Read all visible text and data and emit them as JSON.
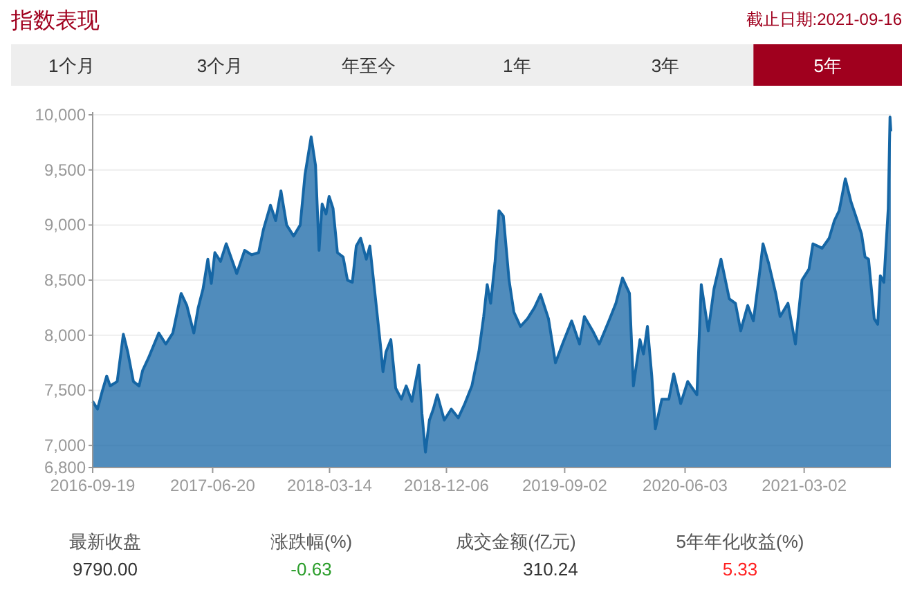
{
  "chart_data": {
    "type": "area",
    "title": "指数表现",
    "subtitle": "截止日期:2021-09-16",
    "annotations": [
      "1个月",
      "3个月",
      "年至今",
      "1年",
      "3年",
      "5年",
      "最新收盘",
      "9790.00",
      "涨跌幅(%)",
      "-0.63",
      "成交金额(亿元)",
      "310.24",
      "5年年化收益(%)",
      "5.33"
    ],
    "x": [
      "2016-09-19",
      "2016-09-30",
      "2016-10-10",
      "2016-10-21",
      "2016-10-29",
      "2016-11-14",
      "2016-11-28",
      "2016-12-08",
      "2016-12-21",
      "2017-01-03",
      "2017-01-11",
      "2017-01-24",
      "2017-02-17",
      "2017-03-05",
      "2017-03-21",
      "2017-04-09",
      "2017-04-22",
      "2017-05-08",
      "2017-05-18",
      "2017-05-29",
      "2017-06-09",
      "2017-06-17",
      "2017-06-25",
      "2017-07-08",
      "2017-07-21",
      "2017-08-14",
      "2017-09-01",
      "2017-09-17",
      "2017-10-03",
      "2017-10-14",
      "2017-10-30",
      "2017-11-11",
      "2017-11-23",
      "2017-12-06",
      "2017-12-22",
      "2018-01-06",
      "2018-01-17",
      "2018-01-31",
      "2018-02-10",
      "2018-02-18",
      "2018-02-25",
      "2018-03-06",
      "2018-03-13",
      "2018-03-22",
      "2018-04-01",
      "2018-04-14",
      "2018-04-24",
      "2018-05-05",
      "2018-05-14",
      "2018-05-24",
      "2018-06-06",
      "2018-06-14",
      "2018-06-27",
      "2018-07-08",
      "2018-07-14",
      "2018-07-21",
      "2018-08-01",
      "2018-08-12",
      "2018-08-25",
      "2018-09-05",
      "2018-09-18",
      "2018-10-04",
      "2018-10-11",
      "2018-10-19",
      "2018-10-28",
      "2018-11-06",
      "2018-11-15",
      "2018-12-01",
      "2018-12-17",
      "2019-01-02",
      "2019-01-17",
      "2019-02-02",
      "2019-02-18",
      "2019-03-01",
      "2019-03-09",
      "2019-03-17",
      "2019-03-27",
      "2019-04-05",
      "2019-04-15",
      "2019-04-28",
      "2019-05-09",
      "2019-05-24",
      "2019-06-09",
      "2019-06-25",
      "2019-07-09",
      "2019-07-27",
      "2019-08-12",
      "2019-08-28",
      "2019-09-18",
      "2019-10-06",
      "2019-10-17",
      "2019-11-05",
      "2019-11-20",
      "2019-12-12",
      "2019-12-28",
      "2020-01-12",
      "2020-01-28",
      "2020-02-06",
      "2020-02-21",
      "2020-02-29",
      "2020-03-09",
      "2020-03-19",
      "2020-03-27",
      "2020-04-11",
      "2020-04-27",
      "2020-05-08",
      "2020-05-24",
      "2020-06-09",
      "2020-06-30",
      "2020-07-10",
      "2020-07-26",
      "2020-08-08",
      "2020-08-24",
      "2020-09-12",
      "2020-09-26",
      "2020-10-08",
      "2020-10-24",
      "2020-11-06",
      "2020-11-20",
      "2020-11-28",
      "2020-12-11",
      "2020-12-27",
      "2021-01-06",
      "2021-01-24",
      "2021-02-10",
      "2021-02-25",
      "2021-03-13",
      "2021-03-22",
      "2021-04-12",
      "2021-04-28",
      "2021-05-10",
      "2021-05-21",
      "2021-06-04",
      "2021-06-17",
      "2021-06-28",
      "2021-07-11",
      "2021-07-19",
      "2021-07-27",
      "2021-08-09",
      "2021-08-17",
      "2021-08-23",
      "2021-08-31",
      "2021-09-10",
      "2021-09-14",
      "2021-09-16"
    ],
    "series": [
      {
        "color": "#1566a5",
        "values": [
          7400,
          7330,
          7480,
          7630,
          7540,
          7580,
          8010,
          7850,
          7580,
          7540,
          7680,
          7790,
          8020,
          7920,
          8020,
          8380,
          8270,
          8020,
          8250,
          8420,
          8690,
          8470,
          8750,
          8670,
          8830,
          8560,
          8770,
          8730,
          8750,
          8960,
          9180,
          9040,
          9310,
          9000,
          8900,
          9000,
          9460,
          9800,
          9540,
          8770,
          9190,
          9100,
          9260,
          9150,
          8750,
          8710,
          8500,
          8480,
          8810,
          8880,
          8690,
          8810,
          8330,
          7920,
          7670,
          7850,
          7960,
          7520,
          7420,
          7540,
          7400,
          7730,
          7290,
          6940,
          7230,
          7330,
          7460,
          7230,
          7330,
          7250,
          7380,
          7540,
          7850,
          8170,
          8460,
          8290,
          8670,
          9130,
          9080,
          8500,
          8210,
          8080,
          8150,
          8250,
          8370,
          8150,
          7750,
          7920,
          8130,
          7920,
          8170,
          8040,
          7920,
          8130,
          8290,
          8520,
          8380,
          7540,
          7960,
          7830,
          8080,
          7630,
          7150,
          7420,
          7420,
          7650,
          7380,
          7580,
          7460,
          8460,
          8040,
          8420,
          8690,
          8330,
          8290,
          8040,
          8270,
          8130,
          8560,
          8830,
          8650,
          8380,
          8170,
          8290,
          7920,
          8500,
          8600,
          8830,
          8790,
          8880,
          9040,
          9130,
          9420,
          9210,
          9080,
          8920,
          8710,
          8690,
          8150,
          8100,
          8540,
          8480,
          9150,
          9980,
          9850
        ]
      }
    ],
    "xlim": [
      "2016-09-19",
      "2021-09-16"
    ],
    "xticks": [
      "2016-09-19",
      "2017-06-20",
      "2018-03-14",
      "2018-12-06",
      "2019-09-02",
      "2020-06-03",
      "2021-03-02"
    ],
    "ylim": [
      6800,
      10000
    ],
    "yticks": [
      {
        "value": 6800,
        "label": "6,800"
      },
      {
        "value": 7000,
        "label": "7,000"
      },
      {
        "value": 7500,
        "label": "7,500"
      },
      {
        "value": 8000,
        "label": "8,000"
      },
      {
        "value": 8500,
        "label": "8,500"
      },
      {
        "value": 9000,
        "label": "9,000"
      },
      {
        "value": 9500,
        "label": "9,500"
      },
      {
        "value": 10000,
        "label": "10,000"
      }
    ],
    "grid": "y",
    "marker": "none",
    "line_style": "solid"
  }
}
